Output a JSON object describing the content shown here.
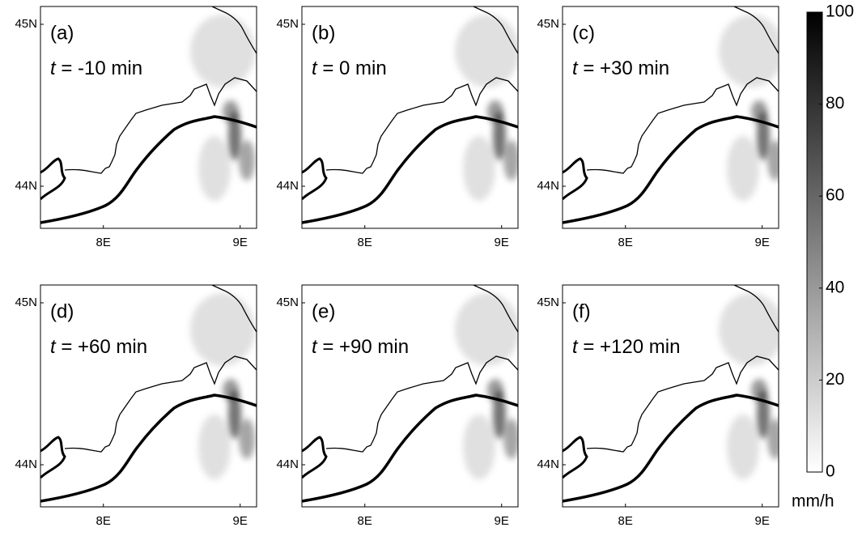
{
  "chart_data": [
    {
      "type": "map",
      "label": "(a)",
      "time_var": "t",
      "time_text": " = -10 min",
      "xlim": [
        7.54,
        9.12
      ],
      "ylim": [
        43.74,
        45.11
      ],
      "xticks": [
        {
          "value": 8,
          "label": "8E"
        },
        {
          "value": 9,
          "label": "9E"
        }
      ],
      "yticks": [
        {
          "value": 44,
          "label": "44N"
        },
        {
          "value": 45,
          "label": "45N"
        }
      ]
    },
    {
      "type": "map",
      "label": "(b)",
      "time_var": "t",
      "time_text": " = 0 min",
      "xlim": [
        7.54,
        9.12
      ],
      "ylim": [
        43.74,
        45.11
      ],
      "xticks": [
        {
          "value": 8,
          "label": "8E"
        },
        {
          "value": 9,
          "label": "9E"
        }
      ],
      "yticks": [
        {
          "value": 44,
          "label": "44N"
        },
        {
          "value": 45,
          "label": "45N"
        }
      ]
    },
    {
      "type": "map",
      "label": "(c)",
      "time_var": "t",
      "time_text": " = +30 min",
      "xlim": [
        7.54,
        9.12
      ],
      "ylim": [
        43.74,
        45.11
      ],
      "xticks": [
        {
          "value": 8,
          "label": "8E"
        },
        {
          "value": 9,
          "label": "9E"
        }
      ],
      "yticks": [
        {
          "value": 44,
          "label": "44N"
        },
        {
          "value": 45,
          "label": "45N"
        }
      ]
    },
    {
      "type": "map",
      "label": "(d)",
      "time_var": "t",
      "time_text": " = +60 min",
      "xlim": [
        7.54,
        9.12
      ],
      "ylim": [
        43.74,
        45.11
      ],
      "xticks": [
        {
          "value": 8,
          "label": "8E"
        },
        {
          "value": 9,
          "label": "9E"
        }
      ],
      "yticks": [
        {
          "value": 44,
          "label": "44N"
        },
        {
          "value": 45,
          "label": "45N"
        }
      ]
    },
    {
      "type": "map",
      "label": "(e)",
      "time_var": "t",
      "time_text": " = +90 min",
      "xlim": [
        7.54,
        9.12
      ],
      "ylim": [
        43.74,
        45.11
      ],
      "xticks": [
        {
          "value": 8,
          "label": "8E"
        },
        {
          "value": 9,
          "label": "9E"
        }
      ],
      "yticks": [
        {
          "value": 44,
          "label": "44N"
        },
        {
          "value": 45,
          "label": "45N"
        }
      ]
    },
    {
      "type": "map",
      "label": "(f)",
      "time_var": "t",
      "time_text": " = +120 min",
      "xlim": [
        7.54,
        9.12
      ],
      "ylim": [
        43.74,
        45.11
      ],
      "xticks": [
        {
          "value": 8,
          "label": "8E"
        },
        {
          "value": 9,
          "label": "9E"
        }
      ],
      "yticks": [
        {
          "value": 44,
          "label": "44N"
        },
        {
          "value": 45,
          "label": "45N"
        }
      ]
    }
  ],
  "colorbar": {
    "lim": [
      0,
      100
    ],
    "ticks": [
      0,
      20,
      40,
      60,
      80,
      100
    ],
    "label": "mm/h",
    "colors": [
      "#ffffff",
      "#000000"
    ]
  }
}
